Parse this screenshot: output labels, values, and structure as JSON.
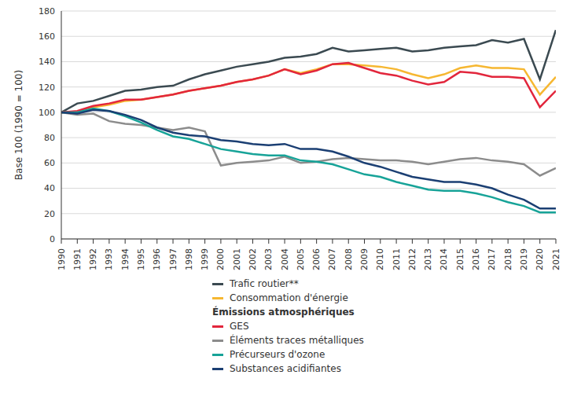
{
  "chart_data": {
    "type": "line",
    "y_label": "Base 100 (1990 = 100)",
    "x": [
      1990,
      1991,
      1992,
      1993,
      1994,
      1995,
      1996,
      1997,
      1998,
      1999,
      2000,
      2001,
      2002,
      2003,
      2004,
      2005,
      2006,
      2007,
      2008,
      2009,
      2010,
      2011,
      2012,
      2013,
      2014,
      2015,
      2016,
      2017,
      2018,
      2019,
      2020,
      2021
    ],
    "xlim": [
      1990,
      2021
    ],
    "xticks": [
      1990,
      1991,
      1992,
      1993,
      1994,
      1995,
      1996,
      1997,
      1998,
      1999,
      2000,
      2001,
      2002,
      2003,
      2004,
      2005,
      2006,
      2007,
      2008,
      2009,
      2010,
      2011,
      2012,
      2013,
      2014,
      2015,
      2016,
      2017,
      2018,
      2019,
      2020,
      2021
    ],
    "ylim": [
      0,
      180
    ],
    "yticks": [
      0,
      20,
      40,
      60,
      80,
      100,
      120,
      140,
      160,
      180
    ],
    "grid": true,
    "series": [
      {
        "name": "Trafic routier**",
        "color": "#3b4a51",
        "values": [
          100,
          107,
          109,
          113,
          117,
          118,
          120,
          121,
          126,
          130,
          133,
          136,
          138,
          140,
          143,
          144,
          146,
          151,
          148,
          149,
          150,
          151,
          148,
          149,
          151,
          152,
          153,
          157,
          155,
          158,
          126,
          165
        ]
      },
      {
        "name": "Consommation d'énergie",
        "color": "#f6b731",
        "values": [
          100,
          100,
          104,
          106,
          109,
          110,
          112,
          114,
          117,
          119,
          121,
          124,
          126,
          129,
          134,
          131,
          134,
          138,
          138,
          137,
          136,
          134,
          130,
          127,
          130,
          135,
          137,
          135,
          135,
          134,
          114,
          128
        ]
      },
      {
        "name": "GES",
        "color": "#e2263c",
        "group": "Émissions atmosphériques",
        "values": [
          100,
          101,
          105,
          107,
          110,
          110,
          112,
          114,
          117,
          119,
          121,
          124,
          126,
          129,
          134,
          130,
          133,
          138,
          139,
          135,
          131,
          129,
          125,
          122,
          124,
          132,
          131,
          128,
          128,
          127,
          104,
          117
        ]
      },
      {
        "name": "Éléments traces métalliques",
        "color": "#8c8c8c",
        "group": "Émissions atmosphériques",
        "values": [
          100,
          98,
          99,
          93,
          91,
          90,
          88,
          86,
          88,
          85,
          58,
          60,
          61,
          62,
          65,
          60,
          61,
          63,
          64,
          63,
          62,
          62,
          61,
          59,
          61,
          63,
          64,
          62,
          61,
          59,
          50,
          56
        ]
      },
      {
        "name": "Précurseurs d'ozone",
        "color": "#17a398",
        "group": "Émissions atmosphériques",
        "values": [
          100,
          100,
          103,
          101,
          97,
          92,
          86,
          81,
          79,
          75,
          71,
          69,
          67,
          66,
          66,
          62,
          61,
          59,
          55,
          51,
          49,
          45,
          42,
          39,
          38,
          38,
          36,
          33,
          29,
          26,
          21,
          21
        ]
      },
      {
        "name": "Substances acidifiantes",
        "color": "#1b3f73",
        "group": "Émissions atmosphériques",
        "values": [
          100,
          99,
          102,
          101,
          98,
          94,
          88,
          84,
          82,
          81,
          78,
          77,
          75,
          74,
          75,
          71,
          71,
          69,
          65,
          60,
          57,
          53,
          49,
          47,
          45,
          45,
          43,
          40,
          35,
          31,
          24,
          24
        ]
      }
    ]
  }
}
